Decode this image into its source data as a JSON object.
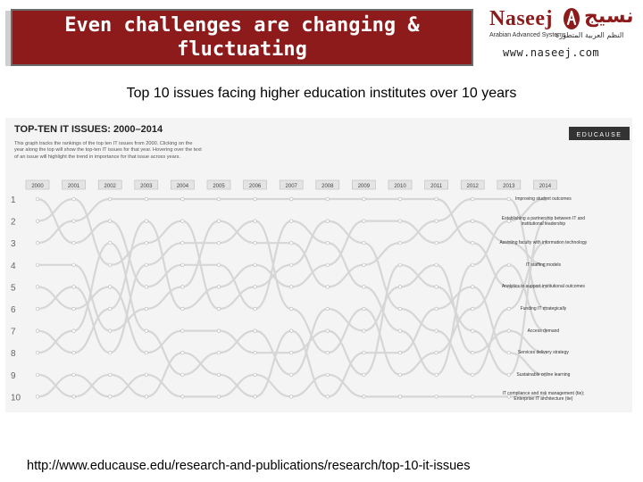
{
  "slide": {
    "title": "Even challenges are changing & fluctuating",
    "subtitle": "Top 10 issues facing higher education institutes over 10 years",
    "source_url": "http://www.educause.edu/research-and-publications/research/top-10-it-issues"
  },
  "logo": {
    "name": "Naseej",
    "arabic_name": "نسيج",
    "tagline": "Arabian Advanced Systems",
    "arabic_tagline": "النظم العربية المتطورة",
    "website": "www.naseej.com"
  },
  "colors": {
    "brand": "#8d1b1b",
    "chart_bg": "#f4f4f4",
    "line": "#d6d6d6",
    "highlight": "#bdbdbd"
  },
  "chart_data": {
    "type": "line",
    "title": "TOP-TEN IT ISSUES: 2000–2014",
    "publisher": "EDUCAUSE",
    "description": "This graph tracks the rankings of the top ten IT issues from 2000. Clicking on the year along the top will show the top-ten IT issues for that year. Hovering over the text of an issue will highlight the trend in importance for that issue across years.",
    "x": [
      "2000",
      "2001",
      "2002",
      "2003",
      "2004",
      "2005",
      "2006",
      "2007",
      "2008",
      "2009",
      "2010",
      "2011",
      "2012",
      "2013",
      "2014"
    ],
    "rank_labels": [
      "1",
      "2",
      "3",
      "4",
      "5",
      "6",
      "7",
      "8",
      "9",
      "10"
    ],
    "ylim": [
      1,
      10
    ],
    "y_inverted": true,
    "issues_2014": [
      "Improving student outcomes",
      "Establishing a partnership between IT and institutional leadership",
      "Assisting faculty with information technology",
      "IT staffing models",
      "Analytics to support institutional outcomes",
      "Funding IT strategically",
      "Access demand",
      "Services delivery strategy",
      "Sustainable online learning",
      "IT compliance and risk management (tie); Enterprise IT architecture (tie)"
    ],
    "series": [
      {
        "name": "trend-a",
        "values": [
          1,
          3,
          2,
          5,
          4,
          4,
          6,
          2,
          3,
          5,
          7,
          9,
          4,
          2,
          1
        ]
      },
      {
        "name": "trend-b",
        "values": [
          2,
          1,
          4,
          3,
          2,
          6,
          5,
          4,
          2,
          3,
          6,
          7,
          9,
          6,
          3
        ]
      },
      {
        "name": "trend-c",
        "values": [
          3,
          2,
          1,
          1,
          1,
          1,
          1,
          1,
          1,
          1,
          1,
          1,
          3,
          5,
          5
        ]
      },
      {
        "name": "trend-d",
        "values": [
          4,
          4,
          7,
          6,
          5,
          2,
          3,
          3,
          5,
          4,
          3,
          2,
          1,
          1,
          6
        ]
      },
      {
        "name": "trend-e",
        "values": [
          5,
          6,
          5,
          8,
          7,
          7,
          8,
          8,
          7,
          9,
          4,
          5,
          7,
          9,
          2
        ]
      },
      {
        "name": "trend-f",
        "values": [
          6,
          5,
          8,
          4,
          3,
          3,
          2,
          6,
          8,
          6,
          9,
          8,
          6,
          4,
          7
        ]
      },
      {
        "name": "trend-g",
        "values": [
          7,
          8,
          6,
          2,
          6,
          5,
          4,
          5,
          4,
          2,
          2,
          3,
          2,
          3,
          4
        ]
      },
      {
        "name": "trend-h",
        "values": [
          8,
          7,
          3,
          7,
          9,
          8,
          7,
          9,
          6,
          7,
          5,
          4,
          8,
          7,
          8
        ]
      },
      {
        "name": "trend-i",
        "values": [
          9,
          10,
          9,
          10,
          8,
          9,
          10,
          7,
          10,
          8,
          8,
          6,
          5,
          8,
          9
        ]
      },
      {
        "name": "trend-j",
        "values": [
          10,
          9,
          10,
          9,
          10,
          10,
          9,
          10,
          9,
          10,
          10,
          10,
          10,
          10,
          10
        ]
      }
    ]
  }
}
